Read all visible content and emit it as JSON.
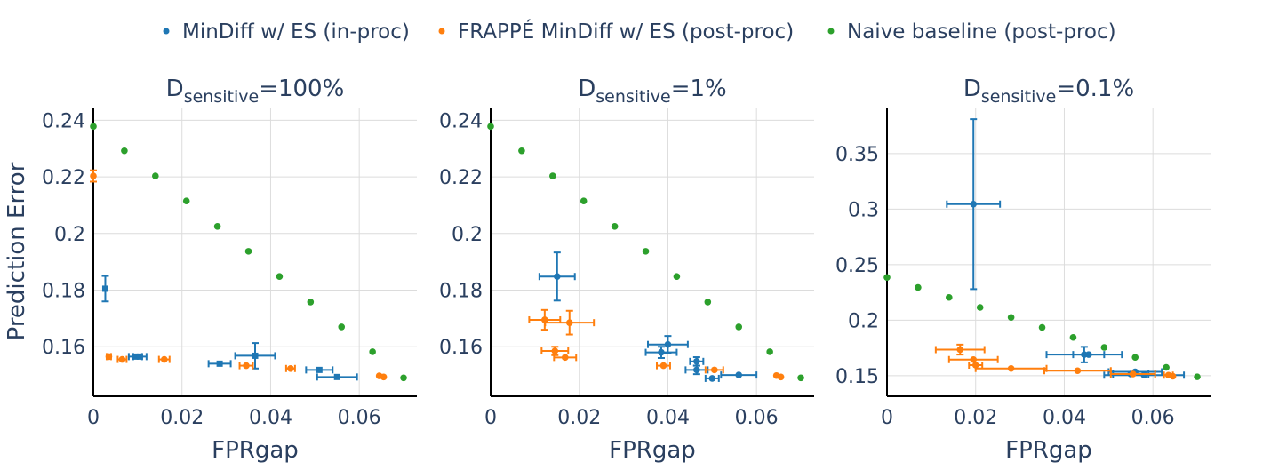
{
  "legend": [
    {
      "name": "MinDiff w/ ES (in-proc)",
      "color": "#1f77b4"
    },
    {
      "name": "FRAPPÉ MinDiff w/ ES (post-proc)",
      "color": "#ff7f0e"
    },
    {
      "name": "Naive baseline (post-proc)",
      "color": "#2ca02c"
    }
  ],
  "y_axis_title": "Prediction Error",
  "chart_data": [
    {
      "type": "scatter",
      "title_main": "D",
      "title_sub": "sensitive",
      "title_suffix": "=100%",
      "xlabel": "FPRgap",
      "ylabel": "Prediction Error",
      "xlim": [
        0,
        0.073
      ],
      "ylim": [
        0.1425,
        0.2445
      ],
      "xticks": [
        0,
        0.02,
        0.04,
        0.06
      ],
      "xtick_labels": [
        "0",
        "0.02",
        "0.04",
        "0.06"
      ],
      "yticks": [
        0.16,
        0.18,
        0.2,
        0.22,
        0.24
      ],
      "ytick_labels": [
        "0.16",
        "0.18",
        "0.2",
        "0.22",
        "0.24"
      ],
      "series": [
        {
          "name": "MinDiff w/ ES (in-proc)",
          "color": "#1f77b4",
          "marker": "square",
          "points": [
            {
              "x": 0.0027,
              "y": 0.1805,
              "xerr": 0,
              "yerr": 0.0045
            },
            {
              "x": 0.0095,
              "y": 0.1565,
              "xerr": 0.0015,
              "yerr": 0
            },
            {
              "x": 0.0105,
              "y": 0.1565,
              "xerr": 0.0015,
              "yerr": 0
            },
            {
              "x": 0.0285,
              "y": 0.154,
              "xerr": 0.0025,
              "yerr": 0
            },
            {
              "x": 0.0365,
              "y": 0.1568,
              "xerr": 0.0045,
              "yerr": 0.0045
            },
            {
              "x": 0.051,
              "y": 0.1518,
              "xerr": 0.003,
              "yerr": 0
            },
            {
              "x": 0.055,
              "y": 0.1493,
              "xerr": 0.0045,
              "yerr": 0
            }
          ]
        },
        {
          "name": "FRAPPÉ MinDiff w/ ES (post-proc)",
          "color": "#ff7f0e",
          "marker": "circle",
          "points": [
            {
              "x": 0,
              "y": 0.2203,
              "xerr": 0,
              "yerr": 0.002
            },
            {
              "x": 0.0035,
              "y": 0.1565,
              "xerr": 0.0005,
              "yerr": 0
            },
            {
              "x": 0.0065,
              "y": 0.1555,
              "xerr": 0.001,
              "yerr": 0
            },
            {
              "x": 0.016,
              "y": 0.1555,
              "xerr": 0.0012,
              "yerr": 0
            },
            {
              "x": 0.0345,
              "y": 0.1533,
              "xerr": 0.0015,
              "yerr": 0
            },
            {
              "x": 0.0445,
              "y": 0.1523,
              "xerr": 0.001,
              "yerr": 0
            },
            {
              "x": 0.0645,
              "y": 0.1497,
              "xerr": 0,
              "yerr": 0
            },
            {
              "x": 0.0655,
              "y": 0.1493,
              "xerr": 0,
              "yerr": 0
            }
          ]
        },
        {
          "name": "Naive baseline (post-proc)",
          "color": "#2ca02c",
          "marker": "circle",
          "points": [
            {
              "x": 0,
              "y": 0.2378
            },
            {
              "x": 0.007,
              "y": 0.2292
            },
            {
              "x": 0.014,
              "y": 0.2203
            },
            {
              "x": 0.021,
              "y": 0.2115
            },
            {
              "x": 0.028,
              "y": 0.2025
            },
            {
              "x": 0.035,
              "y": 0.1937
            },
            {
              "x": 0.042,
              "y": 0.1848
            },
            {
              "x": 0.049,
              "y": 0.1758
            },
            {
              "x": 0.056,
              "y": 0.167
            },
            {
              "x": 0.063,
              "y": 0.1582
            },
            {
              "x": 0.07,
              "y": 0.149
            }
          ]
        }
      ]
    },
    {
      "type": "scatter",
      "title_main": "D",
      "title_sub": "sensitive",
      "title_suffix": "=1%",
      "xlabel": "FPRgap",
      "ylabel": "",
      "xlim": [
        0,
        0.073
      ],
      "ylim": [
        0.1425,
        0.2445
      ],
      "xticks": [
        0,
        0.02,
        0.04,
        0.06
      ],
      "xtick_labels": [
        "0",
        "0.02",
        "0.04",
        "0.06"
      ],
      "yticks": [
        0.16,
        0.18,
        0.2,
        0.22,
        0.24
      ],
      "ytick_labels": [
        "0.16",
        "0.18",
        "0.2",
        "0.22",
        "0.24"
      ],
      "series": [
        {
          "name": "MinDiff w/ ES (in-proc)",
          "color": "#1f77b4",
          "marker": "circle",
          "points": [
            {
              "x": 0.015,
              "y": 0.1848,
              "xerr": 0.004,
              "yerr": 0.0085
            },
            {
              "x": 0.0385,
              "y": 0.158,
              "xerr": 0.0035,
              "yerr": 0.002
            },
            {
              "x": 0.04,
              "y": 0.1608,
              "xerr": 0.0045,
              "yerr": 0.003
            },
            {
              "x": 0.0465,
              "y": 0.1548,
              "xerr": 0.0015,
              "yerr": 0.0015
            },
            {
              "x": 0.0465,
              "y": 0.1518,
              "xerr": 0.0025,
              "yerr": 0.0015
            },
            {
              "x": 0.05,
              "y": 0.1488,
              "xerr": 0.0015,
              "yerr": 0
            },
            {
              "x": 0.056,
              "y": 0.15,
              "xerr": 0.004,
              "yerr": 0
            }
          ]
        },
        {
          "name": "FRAPPÉ MinDiff w/ ES (post-proc)",
          "color": "#ff7f0e",
          "marker": "circle",
          "points": [
            {
              "x": 0.0122,
              "y": 0.1695,
              "xerr": 0.0035,
              "yerr": 0.0035
            },
            {
              "x": 0.0178,
              "y": 0.1685,
              "xerr": 0.0055,
              "yerr": 0.0042
            },
            {
              "x": 0.0145,
              "y": 0.1585,
              "xerr": 0.003,
              "yerr": 0.0015
            },
            {
              "x": 0.0168,
              "y": 0.1562,
              "xerr": 0.0025,
              "yerr": 0
            },
            {
              "x": 0.039,
              "y": 0.1533,
              "xerr": 0.0015,
              "yerr": 0
            },
            {
              "x": 0.0505,
              "y": 0.1518,
              "xerr": 0.002,
              "yerr": 0
            },
            {
              "x": 0.0645,
              "y": 0.1498,
              "xerr": 0,
              "yerr": 0
            },
            {
              "x": 0.0655,
              "y": 0.1493,
              "xerr": 0,
              "yerr": 0
            }
          ]
        },
        {
          "name": "Naive baseline (post-proc)",
          "color": "#2ca02c",
          "marker": "circle",
          "points": [
            {
              "x": 0,
              "y": 0.2378
            },
            {
              "x": 0.007,
              "y": 0.2292
            },
            {
              "x": 0.014,
              "y": 0.2203
            },
            {
              "x": 0.021,
              "y": 0.2115
            },
            {
              "x": 0.028,
              "y": 0.2025
            },
            {
              "x": 0.035,
              "y": 0.1937
            },
            {
              "x": 0.042,
              "y": 0.1848
            },
            {
              "x": 0.049,
              "y": 0.1758
            },
            {
              "x": 0.056,
              "y": 0.167
            },
            {
              "x": 0.063,
              "y": 0.1582
            },
            {
              "x": 0.07,
              "y": 0.149
            }
          ]
        }
      ]
    },
    {
      "type": "scatter",
      "title_main": "D",
      "title_sub": "sensitive",
      "title_suffix": "=0.1%",
      "xlabel": "FPRgap",
      "ylabel": "",
      "xlim": [
        0,
        0.073
      ],
      "ylim": [
        0.1315,
        0.3915
      ],
      "xticks": [
        0,
        0.02,
        0.04,
        0.06
      ],
      "xtick_labels": [
        "0",
        "0.02",
        "0.04",
        "0.06"
      ],
      "yticks": [
        0.15,
        0.2,
        0.25,
        0.3,
        0.35
      ],
      "ytick_labels": [
        "0.15",
        "0.2",
        "0.25",
        "0.3",
        "0.35"
      ],
      "series": [
        {
          "name": "MinDiff w/ ES (in-proc)",
          "color": "#1f77b4",
          "marker": "circle",
          "points": [
            {
              "x": 0.0195,
              "y": 0.3045,
              "xerr": 0.006,
              "yerr": 0.0765
            },
            {
              "x": 0.0445,
              "y": 0.169,
              "xerr": 0.0085,
              "yerr": 0.007
            },
            {
              "x": 0.0455,
              "y": 0.169,
              "xerr": 0.0035,
              "yerr": 0
            },
            {
              "x": 0.055,
              "y": 0.1515,
              "xerr": 0.004,
              "yerr": 0
            },
            {
              "x": 0.056,
              "y": 0.1535,
              "xerr": 0.006,
              "yerr": 0
            },
            {
              "x": 0.058,
              "y": 0.1505,
              "xerr": 0.009,
              "yerr": 0
            }
          ]
        },
        {
          "name": "FRAPPÉ MinDiff w/ ES (post-proc)",
          "color": "#ff7f0e",
          "marker": "circle",
          "points": [
            {
              "x": 0.0165,
              "y": 0.1735,
              "xerr": 0.0055,
              "yerr": 0.0045
            },
            {
              "x": 0.0195,
              "y": 0.1645,
              "xerr": 0.0055,
              "yerr": 0
            },
            {
              "x": 0.02,
              "y": 0.1595,
              "xerr": 0.0015,
              "yerr": 0
            },
            {
              "x": 0.028,
              "y": 0.1565,
              "xerr": 0.008,
              "yerr": 0
            },
            {
              "x": 0.043,
              "y": 0.1545,
              "xerr": 0.0075,
              "yerr": 0
            },
            {
              "x": 0.0555,
              "y": 0.1515,
              "xerr": 0.005,
              "yerr": 0
            },
            {
              "x": 0.0635,
              "y": 0.1505,
              "xerr": 0.001,
              "yerr": 0
            },
            {
              "x": 0.0645,
              "y": 0.1495,
              "xerr": 0,
              "yerr": 0
            }
          ]
        },
        {
          "name": "Naive baseline (post-proc)",
          "color": "#2ca02c",
          "marker": "circle",
          "points": [
            {
              "x": 0,
              "y": 0.2385
            },
            {
              "x": 0.007,
              "y": 0.2295
            },
            {
              "x": 0.014,
              "y": 0.2205
            },
            {
              "x": 0.021,
              "y": 0.2115
            },
            {
              "x": 0.028,
              "y": 0.2025
            },
            {
              "x": 0.035,
              "y": 0.1935
            },
            {
              "x": 0.042,
              "y": 0.1845
            },
            {
              "x": 0.049,
              "y": 0.1755
            },
            {
              "x": 0.056,
              "y": 0.1665
            },
            {
              "x": 0.063,
              "y": 0.1575
            },
            {
              "x": 0.07,
              "y": 0.149
            }
          ]
        }
      ]
    }
  ]
}
